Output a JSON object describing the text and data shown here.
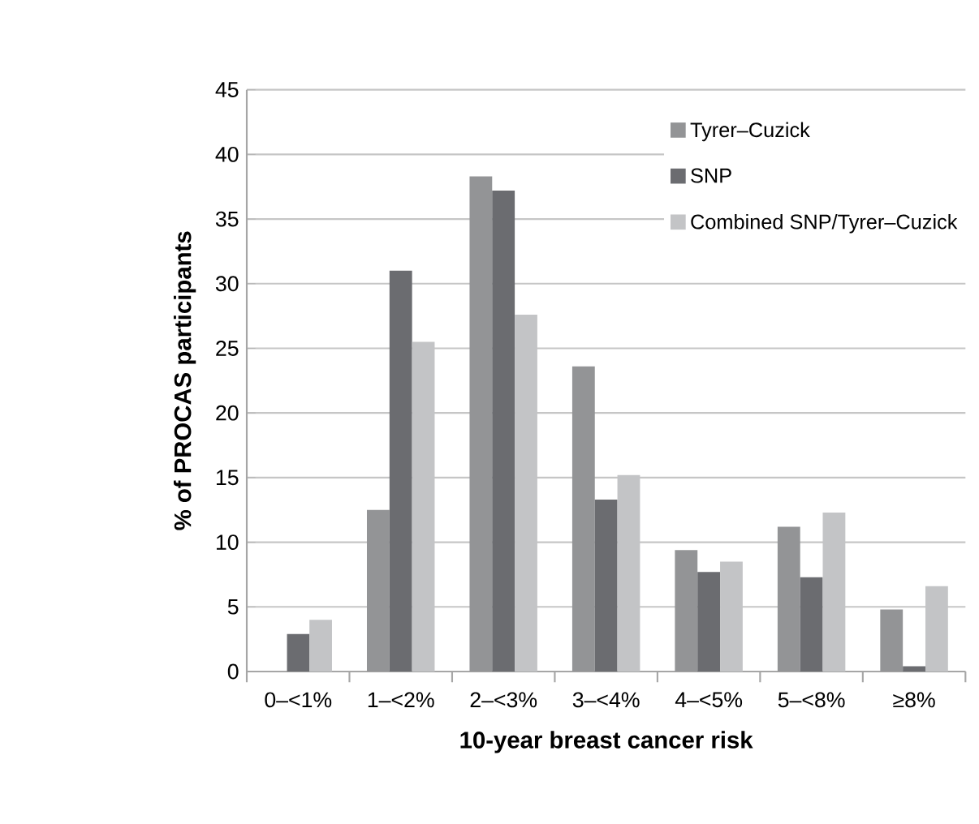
{
  "chart_data": {
    "type": "bar",
    "xlabel": "10-year breast cancer risk",
    "ylabel": "% of PROCAS participants",
    "categories": [
      "0–<1%",
      "1–<2%",
      "2–<3%",
      "3–<4%",
      "4–<5%",
      "5–<8%",
      "≥8%"
    ],
    "series": [
      {
        "name": "Tyrer–Cuzick",
        "color": "#939496",
        "values": [
          0,
          12.5,
          38.3,
          23.6,
          9.4,
          11.2,
          4.8
        ]
      },
      {
        "name": "SNP",
        "color": "#6b6c70",
        "values": [
          2.9,
          31.0,
          37.2,
          13.3,
          7.7,
          7.3,
          0.4
        ]
      },
      {
        "name": "Combined SNP/Tyrer–Cuzick",
        "color": "#c3c4c6",
        "values": [
          4.0,
          25.5,
          27.6,
          15.2,
          8.5,
          12.3,
          6.6
        ]
      }
    ],
    "ylim": [
      0,
      45
    ],
    "yticks": [
      0,
      5,
      10,
      15,
      20,
      25,
      30,
      35,
      40,
      45
    ],
    "grid": "y",
    "legend": "top right"
  }
}
